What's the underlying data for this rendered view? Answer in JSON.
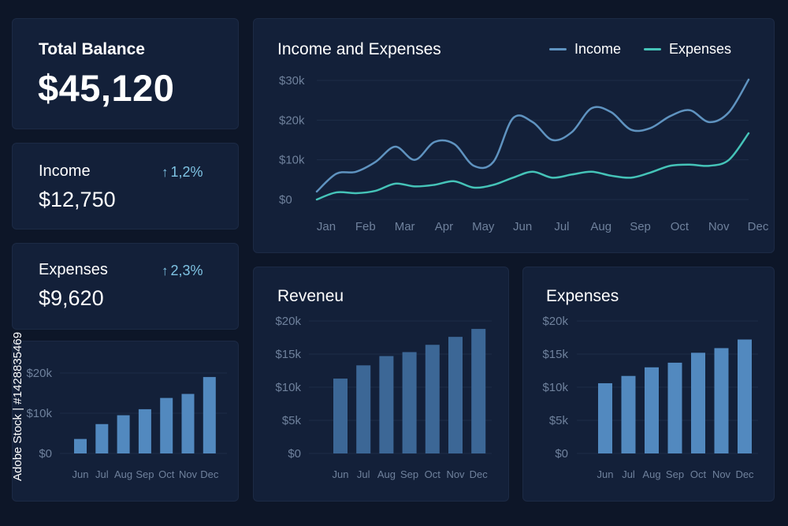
{
  "balance": {
    "label": "Total Balance",
    "value": "$45,120"
  },
  "income": {
    "label": "Income",
    "value": "$12,750",
    "change": "1,2%",
    "change_icon": "arrow-up-icon"
  },
  "expenses": {
    "label": "Expenses",
    "value": "$9,620",
    "change": "2,3%",
    "change_icon": "arrow-up-icon"
  },
  "watermark": {
    "side_text": "Adobe Stock | #1428835469"
  },
  "colors": {
    "background": "#0d1628",
    "card": "#132039",
    "income_line": "#5f93c0",
    "expenses_line": "#45c3b8",
    "bar_dark": "#3c6796",
    "bar_light": "#5289bf",
    "change_text": "#7fc3e3"
  },
  "chart_data": [
    {
      "type": "line",
      "title": "Income and Expenses",
      "categories": [
        "Jan",
        "Feb",
        "Mar",
        "Apr",
        "May",
        "Jun",
        "Jul",
        "Aug",
        "Sep",
        "Oct",
        "Nov",
        "Dec"
      ],
      "y_ticks": [
        "$0",
        "$10k",
        "$20k",
        "$30k"
      ],
      "ylim": [
        0,
        30000
      ],
      "legend_position": "top-right",
      "grid": true,
      "series": [
        {
          "name": "Income",
          "color": "#5f93c0",
          "points": [
            [
              0,
              2000
            ],
            [
              0.5,
              6500
            ],
            [
              1,
              7000
            ],
            [
              1.5,
              9500
            ],
            [
              2,
              13300
            ],
            [
              2.5,
              10000
            ],
            [
              3,
              14500
            ],
            [
              3.5,
              14000
            ],
            [
              4,
              8500
            ],
            [
              4.5,
              9500
            ],
            [
              5,
              20500
            ],
            [
              5.5,
              19500
            ],
            [
              6,
              15000
            ],
            [
              6.5,
              17000
            ],
            [
              7,
              23000
            ],
            [
              7.5,
              22000
            ],
            [
              8,
              17600
            ],
            [
              8.5,
              18000
            ],
            [
              9,
              21000
            ],
            [
              9.5,
              22500
            ],
            [
              10,
              19500
            ],
            [
              10.5,
              22000
            ],
            [
              11,
              30200
            ]
          ]
        },
        {
          "name": "Expenses",
          "color": "#45c3b8",
          "points": [
            [
              0,
              0
            ],
            [
              0.5,
              1800
            ],
            [
              1,
              1600
            ],
            [
              1.5,
              2200
            ],
            [
              2,
              4000
            ],
            [
              2.5,
              3300
            ],
            [
              3,
              3700
            ],
            [
              3.5,
              4600
            ],
            [
              4,
              3000
            ],
            [
              4.5,
              3700
            ],
            [
              5,
              5500
            ],
            [
              5.5,
              7000
            ],
            [
              6,
              5500
            ],
            [
              6.5,
              6300
            ],
            [
              7,
              7000
            ],
            [
              7.5,
              6000
            ],
            [
              8,
              5500
            ],
            [
              8.5,
              6800
            ],
            [
              9,
              8500
            ],
            [
              9.5,
              8800
            ],
            [
              10,
              8500
            ],
            [
              10.5,
              10000
            ],
            [
              11,
              16700
            ]
          ]
        }
      ]
    },
    {
      "type": "bar",
      "title": "",
      "categories": [
        "Jun",
        "Jul",
        "Aug",
        "Sep",
        "Oct",
        "Nov",
        "Dec"
      ],
      "values": [
        3600,
        7300,
        9500,
        11000,
        13800,
        14800,
        19000
      ],
      "y_ticks": [
        "$0",
        "$10k",
        "$20k"
      ],
      "ylim": [
        0,
        20000
      ],
      "grid": true
    },
    {
      "type": "bar",
      "title": "Reveneu",
      "categories": [
        "Jun",
        "Jul",
        "Aug",
        "Sep",
        "Oct",
        "Nov",
        "Dec"
      ],
      "values": [
        11300,
        13300,
        14700,
        15300,
        16400,
        17600,
        18800
      ],
      "y_ticks": [
        "$0",
        "$5k",
        "$10k",
        "$15k",
        "$20k"
      ],
      "ylim": [
        0,
        20000
      ],
      "grid": true
    },
    {
      "type": "bar",
      "title": "Expenses",
      "categories": [
        "Jun",
        "Jul",
        "Aug",
        "Sep",
        "Oct",
        "Nov",
        "Dec"
      ],
      "values": [
        10600,
        11700,
        13000,
        13700,
        15200,
        15900,
        17200
      ],
      "y_ticks": [
        "$0",
        "$5k",
        "$10k",
        "$15k",
        "$20k"
      ],
      "ylim": [
        0,
        20000
      ],
      "grid": true
    }
  ]
}
